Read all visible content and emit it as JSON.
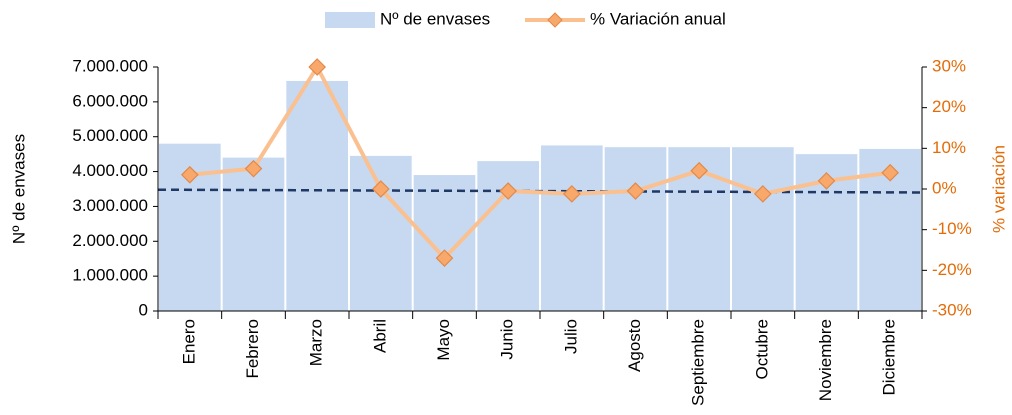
{
  "chart_data": {
    "type": "bar_line",
    "categories": [
      "Enero",
      "Febrero",
      "Marzo",
      "Abril",
      "Mayo",
      "Junio",
      "Julio",
      "Agosto",
      "Septiembre",
      "Octubre",
      "Noviembre",
      "Diciembre"
    ],
    "series": [
      {
        "name": "Nº de envases",
        "type": "bar",
        "color": "#c6d9f1",
        "values": [
          4800000,
          4400000,
          6600000,
          4450000,
          3900000,
          4300000,
          4750000,
          4700000,
          4700000,
          4700000,
          4500000,
          4650000
        ]
      },
      {
        "name": "% Variación anual",
        "type": "line",
        "axis": "y2",
        "color": "#fac090",
        "marker_color": "#f7a86a",
        "marker_edge": "#e2894a",
        "values": [
          3.5,
          5,
          30,
          0,
          -17,
          -0.5,
          -1.2,
          -0.5,
          4.5,
          -1.2,
          2,
          4
        ]
      }
    ],
    "trend_line": {
      "color": "#1f3864",
      "values": [
        3480000,
        3400000
      ]
    },
    "y_label": "Nº de envases",
    "y2_label": "% variación",
    "y2_color": "#e36c09",
    "ylim": [
      0,
      7000000
    ],
    "yticks": [
      0,
      {
        "value": 1000000,
        "label": "1.000.000"
      },
      {
        "value": 2000000,
        "label": "2.000.000"
      },
      {
        "value": 3000000,
        "label": "3.000.000"
      },
      {
        "value": 4000000,
        "label": "4.000.000"
      },
      {
        "value": 5000000,
        "label": "5.000.000"
      },
      {
        "value": 6000000,
        "label": "6.000.000"
      },
      {
        "value": 7000000,
        "label": "7.000.000"
      }
    ],
    "y2lim": [
      -30,
      30
    ],
    "y2ticks": [
      {
        "value": -30,
        "label": "-30%"
      },
      {
        "value": -20,
        "label": "-20%"
      },
      {
        "value": -10,
        "label": "-10%"
      },
      {
        "value": 0,
        "label": "0%"
      },
      {
        "value": 10,
        "label": "10%"
      },
      {
        "value": 20,
        "label": "20%"
      },
      {
        "value": 30,
        "label": "30%"
      }
    ],
    "legend": "top"
  }
}
